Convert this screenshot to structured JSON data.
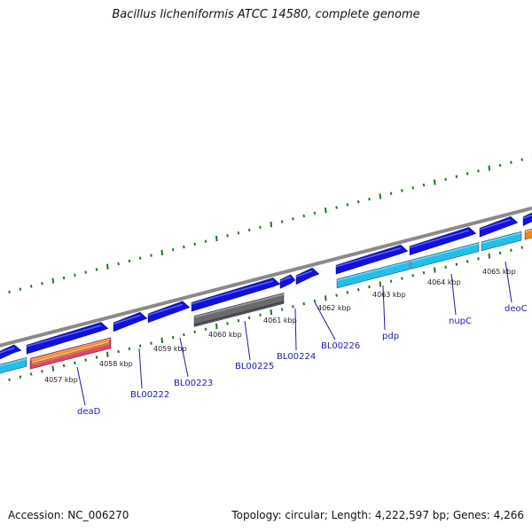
{
  "title": "Bacillus licheniformis ATCC 14580, complete genome",
  "footer": {
    "accession": "Accession: NC_006270",
    "stats": "Topology: circular; Length: 4,222,597 bp; Genes: 4,266"
  },
  "colors": {
    "backbone": "#8a8a8a",
    "cds": "#1010e0",
    "light_cds": "#22c0e8",
    "gray_feature": "#6a6a6a",
    "multi_feature": "#e8406a",
    "tick": "#1a7a1a",
    "label": "#1a1ab0"
  },
  "scale_labels": [
    "4057 kbp",
    "4058 kbp",
    "4059 kbp",
    "4060 kbp",
    "4061 kbp",
    "4062 kbp",
    "4063 kbp",
    "4064 kbp",
    "4065 kbp"
  ],
  "gene_labels": [
    "deaD",
    "BL00222",
    "BL00223",
    "BL00225",
    "BL00224",
    "BL00226",
    "pdp",
    "nupC",
    "deoC"
  ]
}
